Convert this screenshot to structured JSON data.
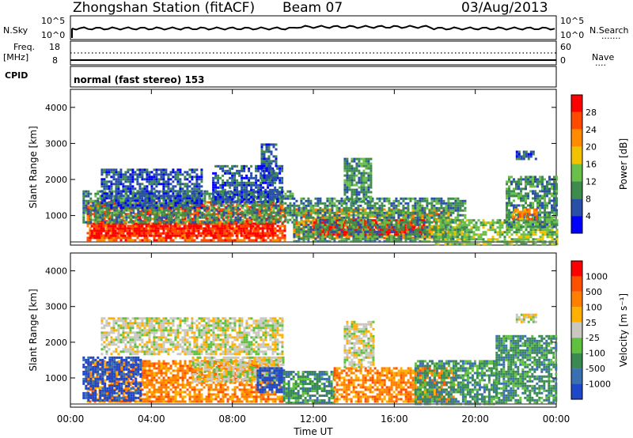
{
  "header": {
    "station": "Zhongshan Station (fitACF)",
    "beam": "Beam 07",
    "date": "03/Aug/2013"
  },
  "meta_panel": {
    "nsky_label": "N.Sky",
    "nsky_ticks": [
      "10^5",
      "10^0"
    ],
    "nsearch_label": "N.Search",
    "nsearch_ticks": [
      "10^5",
      "10^0"
    ],
    "freq_label": "Freq.",
    "freq_unit": "[MHz]",
    "freq_ticks": [
      "18",
      "8"
    ],
    "nave_label": "Nave",
    "nave_ticks": [
      "60",
      "0"
    ],
    "cpid_label": "CPID",
    "cpid_value": "normal (fast stereo) 153"
  },
  "colors": {
    "power_scale": [
      "#0000ff",
      "#2a4fa8",
      "#3e8b4e",
      "#6abf4b",
      "#f2c200",
      "#ff8c00",
      "#ff4a00",
      "#ff0000"
    ],
    "velocity_scale": [
      "#1f48c8",
      "#3a6fb0",
      "#3a8a52",
      "#60c040",
      "#c8c8c0",
      "#ffb000",
      "#ff8000",
      "#ff5000",
      "#ff0000"
    ]
  },
  "chart_data": [
    {
      "type": "heatmap",
      "panel": "power",
      "xlabel": "Time UT",
      "ylabel": "Slant Range [km]",
      "x_ticks": [
        "00:00",
        "04:00",
        "08:00",
        "12:00",
        "16:00",
        "20:00",
        "00:00"
      ],
      "xlim": [
        0,
        24
      ],
      "ylim": [
        180,
        4500
      ],
      "y_ticks": [
        1000,
        2000,
        3000,
        4000
      ],
      "colorbar_label": "Power [dB]",
      "colorbar_ticks": [
        "28",
        "24",
        "20",
        "16",
        "12",
        "8",
        "4"
      ],
      "blobs": [
        {
          "t0": 0.8,
          "t1": 10.6,
          "r0": 300,
          "r1": 1400,
          "color": 6
        },
        {
          "t0": 1.0,
          "t1": 10.0,
          "r0": 450,
          "r1": 800,
          "color": 7
        },
        {
          "t0": 0.6,
          "t1": 11.0,
          "r0": 800,
          "r1": 1700,
          "color": 2
        },
        {
          "t0": 1.5,
          "t1": 6.5,
          "r0": 1200,
          "r1": 2300,
          "color": 1
        },
        {
          "t0": 7.0,
          "t1": 10.5,
          "r0": 1400,
          "r1": 2400,
          "color": 1
        },
        {
          "t0": 9.4,
          "t1": 10.2,
          "r0": 2000,
          "r1": 3000,
          "color": 1
        },
        {
          "t0": 11.0,
          "t1": 18.8,
          "r0": 350,
          "r1": 1200,
          "color": 5
        },
        {
          "t0": 12.0,
          "t1": 17.5,
          "r0": 450,
          "r1": 900,
          "color": 7
        },
        {
          "t0": 11.0,
          "t1": 19.5,
          "r0": 300,
          "r1": 1500,
          "color": 2
        },
        {
          "t0": 13.5,
          "t1": 14.8,
          "r0": 1400,
          "r1": 2600,
          "color": 2
        },
        {
          "t0": 18.0,
          "t1": 24.0,
          "r0": 200,
          "r1": 900,
          "color": 3
        },
        {
          "t0": 21.5,
          "t1": 24.0,
          "r0": 700,
          "r1": 2100,
          "color": 2
        },
        {
          "t0": 21.8,
          "t1": 23.0,
          "r0": 900,
          "r1": 1200,
          "color": 5
        },
        {
          "t0": 22.0,
          "t1": 23.0,
          "r0": 2600,
          "r1": 2800,
          "color": 1
        }
      ]
    },
    {
      "type": "heatmap",
      "panel": "velocity",
      "xlabel": "Time UT",
      "ylabel": "Slant Range [km]",
      "x_ticks": [
        "00:00",
        "04:00",
        "08:00",
        "12:00",
        "16:00",
        "20:00",
        "00:00"
      ],
      "xlim": [
        0,
        24
      ],
      "ylim": [
        180,
        4500
      ],
      "y_ticks": [
        1000,
        2000,
        3000,
        4000
      ],
      "colorbar_label": "Velocity [m s⁻¹]",
      "colorbar_ticks": [
        "1000",
        "500",
        "100",
        "25",
        "-25",
        "-100",
        "-500",
        "-1000"
      ],
      "blobs": [
        {
          "t0": 0.8,
          "t1": 10.5,
          "r0": 350,
          "r1": 1500,
          "color": 6
        },
        {
          "t0": 0.6,
          "t1": 3.5,
          "r0": 400,
          "r1": 1600,
          "color": 0
        },
        {
          "t0": 6.0,
          "t1": 10.5,
          "r0": 900,
          "r1": 1600,
          "color": 4
        },
        {
          "t0": 9.2,
          "t1": 10.6,
          "r0": 600,
          "r1": 1300,
          "color": 0
        },
        {
          "t0": 1.5,
          "t1": 10.5,
          "r0": 1700,
          "r1": 2700,
          "color": 4
        },
        {
          "t0": 10.5,
          "t1": 13.0,
          "r0": 300,
          "r1": 1200,
          "color": 2
        },
        {
          "t0": 13.0,
          "t1": 19.0,
          "r0": 350,
          "r1": 1300,
          "color": 6
        },
        {
          "t0": 13.5,
          "t1": 15.0,
          "r0": 1300,
          "r1": 2600,
          "color": 4
        },
        {
          "t0": 17.0,
          "t1": 21.0,
          "r0": 300,
          "r1": 1500,
          "color": 2
        },
        {
          "t0": 21.0,
          "t1": 24.0,
          "r0": 300,
          "r1": 2200,
          "color": 2
        },
        {
          "t0": 22.0,
          "t1": 23.0,
          "r0": 2600,
          "r1": 2800,
          "color": 4
        }
      ]
    }
  ]
}
